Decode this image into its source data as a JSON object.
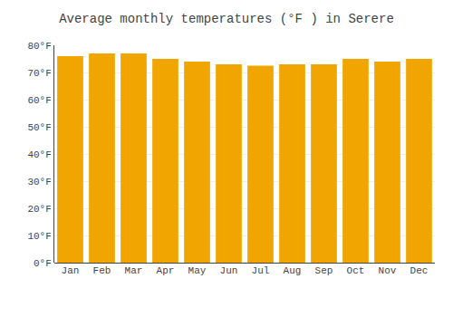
{
  "chart_data": {
    "type": "bar",
    "title": "Average monthly temperatures (°F ) in Serere",
    "categories": [
      "Jan",
      "Feb",
      "Mar",
      "Apr",
      "May",
      "Jun",
      "Jul",
      "Aug",
      "Sep",
      "Oct",
      "Nov",
      "Dec"
    ],
    "values": [
      76,
      77,
      77,
      75,
      74,
      73,
      72.5,
      73,
      73,
      75,
      74,
      75
    ],
    "color": "#F0A500",
    "ylim": [
      0,
      80
    ],
    "yticks": [
      {
        "value": 0,
        "label": "0°F"
      },
      {
        "value": 10,
        "label": "10°F"
      },
      {
        "value": 20,
        "label": "20°F"
      },
      {
        "value": 30,
        "label": "30°F"
      },
      {
        "value": 40,
        "label": "40°F"
      },
      {
        "value": 50,
        "label": "50°F"
      },
      {
        "value": 60,
        "label": "60°F"
      },
      {
        "value": 70,
        "label": "70°F"
      },
      {
        "value": 80,
        "label": "80°F"
      }
    ],
    "grid": true
  }
}
